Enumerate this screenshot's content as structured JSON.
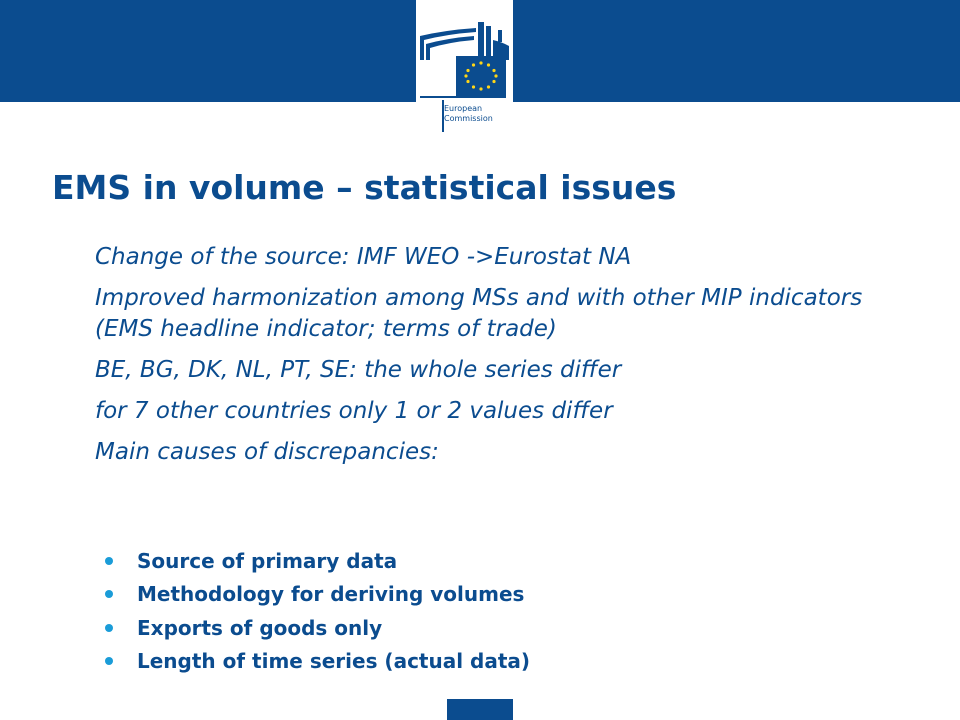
{
  "header": {
    "logo": {
      "icon": "european-commission-logo",
      "line1": "European",
      "line2": "Commission",
      "colors": {
        "blue": "#0b4c8f",
        "star": "#ffd617"
      }
    }
  },
  "slide": {
    "title": "EMS in volume – statistical issues",
    "items": [
      "Change of the source: IMF WEO ->Eurostat NA",
      "Improved harmonization among MSs and with other MIP indicators (EMS headline indicator; terms of trade)",
      "BE, BG, DK, NL, PT, SE:  the whole series differ",
      "for 7 other countries only 1 or 2 values differ",
      "Main causes of discrepancies:"
    ],
    "subitems": [
      "Source of primary data",
      "Methodology for deriving volumes",
      "Exports of goods only",
      "Length of time series (actual data)"
    ]
  }
}
